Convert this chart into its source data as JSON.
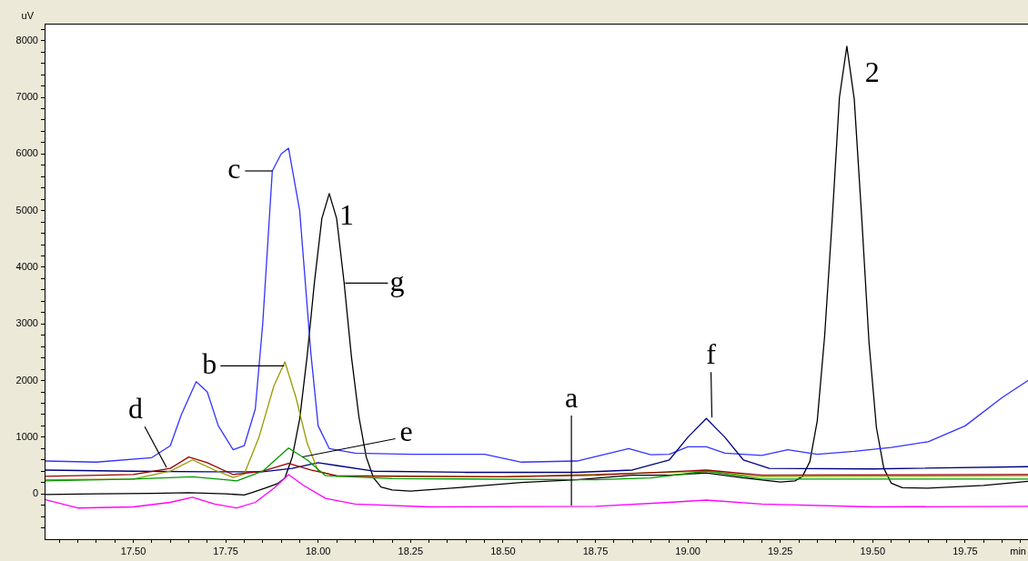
{
  "chart_data": {
    "type": "line",
    "xlabel": "min",
    "ylabel": "uV",
    "xlim": [
      17.26,
      19.92
    ],
    "xticks": [
      {
        "value": 17.3,
        "label": null
      },
      {
        "value": 17.35,
        "label": null
      },
      {
        "value": 17.4,
        "label": null
      },
      {
        "value": 17.45,
        "label": null
      },
      {
        "value": 17.5,
        "label": "17.50"
      },
      {
        "value": 17.55,
        "label": null
      },
      {
        "value": 17.6,
        "label": null
      },
      {
        "value": 17.65,
        "label": null
      },
      {
        "value": 17.7,
        "label": null
      },
      {
        "value": 17.75,
        "label": "17.75"
      },
      {
        "value": 17.8,
        "label": null
      },
      {
        "value": 17.85,
        "label": null
      },
      {
        "value": 17.9,
        "label": null
      },
      {
        "value": 17.95,
        "label": null
      },
      {
        "value": 18,
        "label": "18.00"
      },
      {
        "value": 18.05,
        "label": null
      },
      {
        "value": 18.1,
        "label": null
      },
      {
        "value": 18.15,
        "label": null
      },
      {
        "value": 18.2,
        "label": null
      },
      {
        "value": 18.25,
        "label": "18.25"
      },
      {
        "value": 18.3,
        "label": null
      },
      {
        "value": 18.35,
        "label": null
      },
      {
        "value": 18.4,
        "label": null
      },
      {
        "value": 18.45,
        "label": null
      },
      {
        "value": 18.5,
        "label": "18.50"
      },
      {
        "value": 18.55,
        "label": null
      },
      {
        "value": 18.6,
        "label": null
      },
      {
        "value": 18.65,
        "label": null
      },
      {
        "value": 18.7,
        "label": null
      },
      {
        "value": 18.75,
        "label": "18.75"
      },
      {
        "value": 18.8,
        "label": null
      },
      {
        "value": 18.85,
        "label": null
      },
      {
        "value": 18.9,
        "label": null
      },
      {
        "value": 18.95,
        "label": null
      },
      {
        "value": 19,
        "label": "19.00"
      },
      {
        "value": 19.05,
        "label": null
      },
      {
        "value": 19.1,
        "label": null
      },
      {
        "value": 19.15,
        "label": null
      },
      {
        "value": 19.2,
        "label": null
      },
      {
        "value": 19.25,
        "label": "19.25"
      },
      {
        "value": 19.3,
        "label": null
      },
      {
        "value": 19.35,
        "label": null
      },
      {
        "value": 19.4,
        "label": null
      },
      {
        "value": 19.45,
        "label": null
      },
      {
        "value": 19.5,
        "label": "19.50"
      },
      {
        "value": 19.55,
        "label": null
      },
      {
        "value": 19.6,
        "label": null
      },
      {
        "value": 19.65,
        "label": null
      },
      {
        "value": 19.7,
        "label": null
      },
      {
        "value": 19.75,
        "label": "19.75"
      },
      {
        "value": 19.8,
        "label": null
      },
      {
        "value": 19.85,
        "label": null
      },
      {
        "value": 19.9,
        "label": null
      }
    ],
    "ylim": [
      -800,
      8300
    ],
    "yticks": [
      {
        "value": -600,
        "label": null
      },
      {
        "value": -400,
        "label": null
      },
      {
        "value": -200,
        "label": null
      },
      0,
      {
        "value": 200,
        "label": null
      },
      {
        "value": 400,
        "label": null
      },
      {
        "value": 600,
        "label": null
      },
      {
        "value": 800,
        "label": null
      },
      1000,
      {
        "value": 1200,
        "label": null
      },
      {
        "value": 1400,
        "label": null
      },
      {
        "value": 1600,
        "label": null
      },
      {
        "value": 1800,
        "label": null
      },
      2000,
      {
        "value": 2200,
        "label": null
      },
      {
        "value": 2400,
        "label": null
      },
      {
        "value": 2600,
        "label": null
      },
      {
        "value": 2800,
        "label": null
      },
      3000,
      {
        "value": 3200,
        "label": null
      },
      {
        "value": 3400,
        "label": null
      },
      {
        "value": 3600,
        "label": null
      },
      {
        "value": 3800,
        "label": null
      },
      4000,
      {
        "value": 4200,
        "label": null
      },
      {
        "value": 4400,
        "label": null
      },
      {
        "value": 4600,
        "label": null
      },
      {
        "value": 4800,
        "label": null
      },
      5000,
      {
        "value": 5200,
        "label": null
      },
      {
        "value": 5400,
        "label": null
      },
      {
        "value": 5600,
        "label": null
      },
      {
        "value": 5800,
        "label": null
      },
      6000,
      {
        "value": 6200,
        "label": null
      },
      {
        "value": 6400,
        "label": null
      },
      {
        "value": 6600,
        "label": null
      },
      {
        "value": 6800,
        "label": null
      },
      7000,
      {
        "value": 7200,
        "label": null
      },
      {
        "value": 7400,
        "label": null
      },
      {
        "value": 7600,
        "label": null
      },
      {
        "value": 7800,
        "label": null
      },
      8000,
      {
        "value": 8200,
        "label": null
      }
    ],
    "series": [
      {
        "color": "#ff00ff",
        "x": [
          17.26,
          17.35,
          17.5,
          17.6,
          17.66,
          17.72,
          17.78,
          17.83,
          17.88,
          17.92,
          17.96,
          18.02,
          18.1,
          18.3,
          18.75,
          18.95,
          19.05,
          19.2,
          19.5,
          19.92
        ],
        "values": [
          -100,
          -250,
          -230,
          -150,
          -60,
          -180,
          -250,
          -150,
          100,
          340,
          150,
          -80,
          -180,
          -230,
          -220,
          -150,
          -110,
          -180,
          -230,
          -220
        ]
      },
      {
        "color": "#009900",
        "x": [
          17.26,
          17.5,
          17.66,
          17.78,
          17.85,
          17.92,
          17.97,
          18.02,
          18.2,
          18.75,
          18.9,
          19.05,
          19.2,
          19.92
        ],
        "values": [
          230,
          260,
          300,
          230,
          400,
          810,
          600,
          320,
          270,
          250,
          280,
          400,
          260,
          260
        ]
      },
      {
        "color": "#990000",
        "x": [
          17.26,
          17.5,
          17.6,
          17.65,
          17.7,
          17.77,
          17.85,
          17.92,
          17.98,
          18.05,
          18.5,
          18.75,
          19.05,
          19.2,
          19.92
        ],
        "values": [
          310,
          340,
          450,
          650,
          550,
          340,
          400,
          540,
          420,
          320,
          300,
          330,
          420,
          330,
          340
        ]
      },
      {
        "color": "#999900",
        "x": [
          17.26,
          17.5,
          17.6,
          17.66,
          17.72,
          17.77,
          17.8,
          17.84,
          17.88,
          17.91,
          17.94,
          17.97,
          18,
          18.05,
          18.5,
          19.05,
          19.2,
          19.92
        ],
        "values": [
          250,
          260,
          400,
          600,
          420,
          290,
          350,
          1000,
          1900,
          2330,
          1700,
          900,
          400,
          310,
          300,
          400,
          300,
          320
        ]
      },
      {
        "color": "#000080",
        "x": [
          17.26,
          17.5,
          17.7,
          17.85,
          17.93,
          18,
          18.05,
          18.15,
          18.4,
          18.7,
          18.85,
          18.95,
          19,
          19.05,
          19.1,
          19.15,
          19.22,
          19.5,
          19.92
        ],
        "values": [
          420,
          400,
          390,
          390,
          450,
          550,
          500,
          400,
          380,
          380,
          420,
          600,
          1000,
          1330,
          1000,
          600,
          450,
          440,
          480
        ]
      },
      {
        "color": "#3333ff",
        "x": [
          17.26,
          17.4,
          17.55,
          17.6,
          17.63,
          17.67,
          17.7,
          17.73,
          17.77,
          17.8,
          17.83,
          17.85,
          17.876,
          17.9,
          17.92,
          17.95,
          17.98,
          18,
          18.03,
          18.1,
          18.25,
          18.45,
          18.55,
          18.7,
          18.84,
          18.9,
          18.95,
          19,
          19.05,
          19.1,
          19.2,
          19.27,
          19.35,
          19.45,
          19.55,
          19.65,
          19.75,
          19.85,
          19.92
        ],
        "values": [
          580,
          560,
          640,
          850,
          1400,
          1980,
          1800,
          1200,
          780,
          850,
          1500,
          3000,
          5700,
          6000,
          6100,
          5000,
          2500,
          1200,
          800,
          720,
          700,
          700,
          560,
          580,
          800,
          690,
          700,
          830,
          830,
          720,
          680,
          780,
          700,
          750,
          820,
          920,
          1200,
          1700,
          2000
        ]
      },
      {
        "color": "#000000",
        "x": [
          17.26,
          17.4,
          17.55,
          17.65,
          17.75,
          17.8,
          17.82,
          17.86,
          17.89,
          17.91,
          17.93,
          17.95,
          17.97,
          17.99,
          18.01,
          18.03,
          18.05,
          18.07,
          18.09,
          18.11,
          18.13,
          18.15,
          18.17,
          18.2,
          18.25,
          18.4,
          18.55,
          18.7,
          18.85,
          18.95,
          19.05,
          19.15,
          19.25,
          19.29,
          19.31,
          19.33,
          19.35,
          19.37,
          19.39,
          19.41,
          19.43,
          19.45,
          19.47,
          19.49,
          19.51,
          19.53,
          19.55,
          19.58,
          19.65,
          19.8,
          19.92
        ],
        "values": [
          -10,
          0,
          10,
          20,
          0,
          -20,
          20,
          110,
          180,
          280,
          650,
          1320,
          2420,
          3740,
          4860,
          5300,
          4860,
          3740,
          2420,
          1370,
          650,
          280,
          120,
          70,
          50,
          120,
          200,
          250,
          330,
          330,
          370,
          280,
          210,
          230,
          310,
          570,
          1290,
          2790,
          4800,
          7000,
          7900,
          6970,
          4900,
          2670,
          1170,
          450,
          190,
          110,
          100,
          150,
          220
        ]
      }
    ],
    "annotations": [
      {
        "text": "c",
        "x": 17.876,
        "y": 5700
      },
      {
        "text": "b",
        "x": 17.908,
        "y": 2260
      },
      {
        "text": "d",
        "x": 17.59,
        "y": 465
      },
      {
        "text": "e",
        "x": 17.958,
        "y": 652
      },
      {
        "text": "f",
        "x": 19.065,
        "y": 1346
      },
      {
        "text": "a",
        "x": 18.685,
        "y": -208
      },
      {
        "text": "g",
        "x": 18.073,
        "y": 3719
      },
      {
        "text": "1",
        "x": 18.03,
        "y": 5300
      },
      {
        "text": "2",
        "x": 19.43,
        "y": 7900
      }
    ]
  }
}
